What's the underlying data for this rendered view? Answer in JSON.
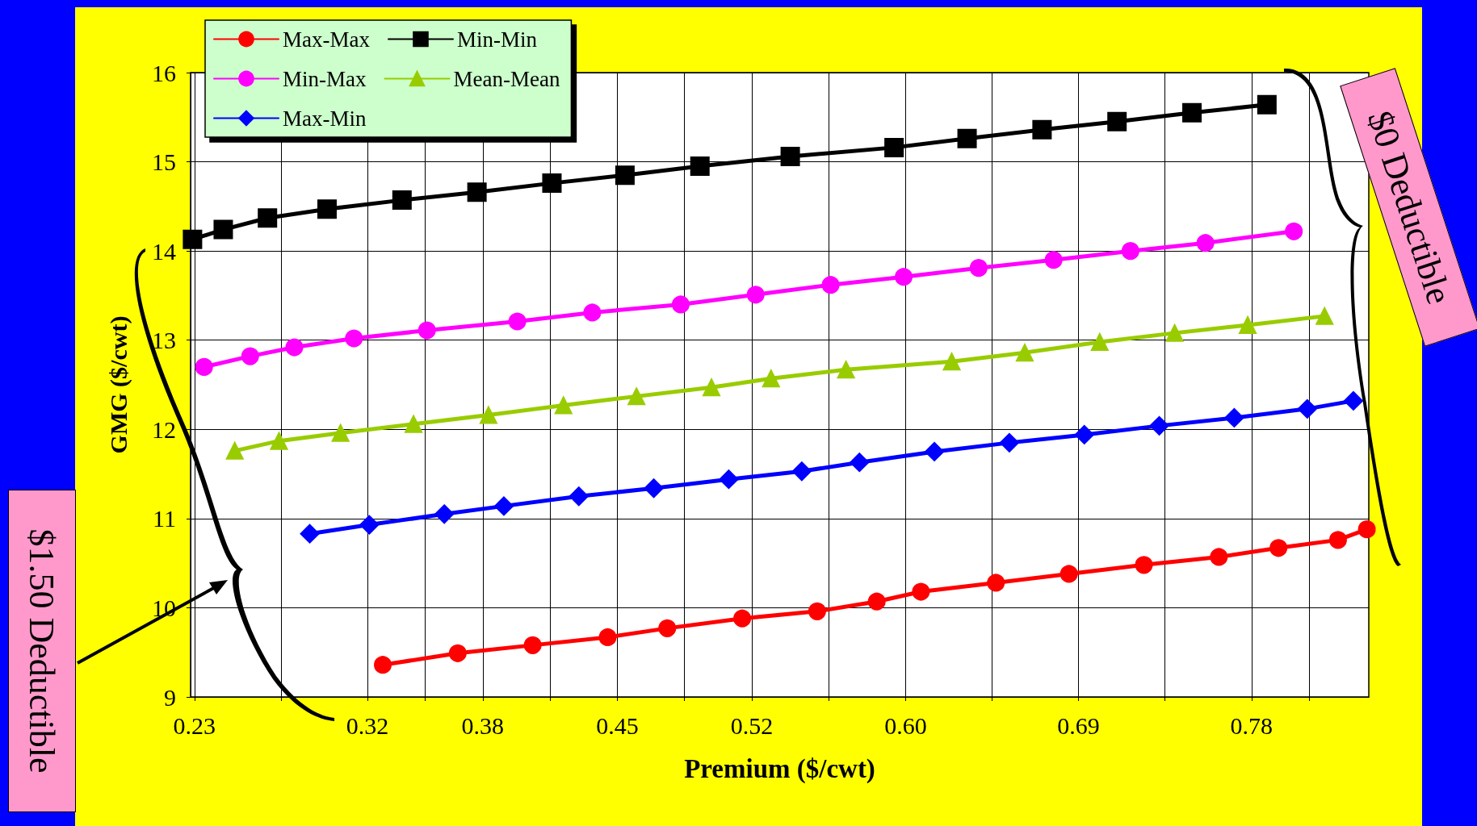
{
  "chart_data": {
    "type": "line",
    "xlabel": "Premium ($/cwt)",
    "ylabel": "GMG ($/cwt)",
    "xlim": [
      0.228,
      0.841
    ],
    "xticks": [
      0.23,
      {
        "value": 0.275,
        "label": null
      },
      0.32,
      {
        "value": 0.35,
        "label": null
      },
      0.38,
      {
        "value": 0.415,
        "label": null
      },
      0.45,
      {
        "value": 0.485,
        "label": null
      },
      0.52,
      {
        "value": 0.56,
        "label": null
      },
      {
        "value": 0.6,
        "label": "0.60"
      },
      {
        "value": 0.645,
        "label": null
      },
      0.69,
      {
        "value": 0.735,
        "label": null
      },
      0.78,
      {
        "value": 0.81,
        "label": null
      }
    ],
    "ylim": [
      9,
      16
    ],
    "yticks": [
      9,
      10,
      11,
      12,
      13,
      14,
      15,
      16
    ],
    "grid": true,
    "legend": "top left",
    "line_style": "solid",
    "annotations": [
      "$0 Deductible",
      "$1.50 Deductible"
    ],
    "series": [
      {
        "name": "Max-Max",
        "color": "#ff0000",
        "marker": "circle",
        "x": [
          0.328,
          0.367,
          0.406,
          0.445,
          0.476,
          0.515,
          0.554,
          0.585,
          0.608,
          0.647,
          0.685,
          0.724,
          0.763,
          0.794,
          0.825,
          0.84
        ],
        "values": [
          9.36,
          9.49,
          9.58,
          9.67,
          9.77,
          9.88,
          9.96,
          10.07,
          10.18,
          10.28,
          10.38,
          10.48,
          10.57,
          10.67,
          10.76,
          10.88
        ]
      },
      {
        "name": "Min-Min",
        "color": "#000000",
        "marker": "square",
        "x": [
          0.229,
          0.245,
          0.268,
          0.299,
          0.338,
          0.377,
          0.416,
          0.454,
          0.493,
          0.54,
          0.594,
          0.632,
          0.671,
          0.71,
          0.749,
          0.788
        ],
        "values": [
          14.13,
          14.24,
          14.37,
          14.47,
          14.57,
          14.66,
          14.76,
          14.85,
          14.95,
          15.06,
          15.16,
          15.26,
          15.36,
          15.45,
          15.55,
          15.64
        ]
      },
      {
        "name": "Min-Max",
        "color": "#ff00ff",
        "marker": "circle",
        "x": [
          0.235,
          0.259,
          0.282,
          0.313,
          0.351,
          0.398,
          0.437,
          0.483,
          0.522,
          0.561,
          0.599,
          0.638,
          0.677,
          0.717,
          0.756,
          0.802
        ],
        "values": [
          12.7,
          12.82,
          12.92,
          13.02,
          13.11,
          13.21,
          13.31,
          13.4,
          13.51,
          13.62,
          13.71,
          13.81,
          13.9,
          14.0,
          14.09,
          14.22
        ]
      },
      {
        "name": "Mean-Mean",
        "color": "#99cc00",
        "marker": "triangle",
        "x": [
          0.251,
          0.274,
          0.306,
          0.344,
          0.383,
          0.422,
          0.46,
          0.499,
          0.53,
          0.569,
          0.624,
          0.662,
          0.701,
          0.74,
          0.778,
          0.818
        ],
        "values": [
          11.76,
          11.87,
          11.96,
          12.06,
          12.16,
          12.27,
          12.37,
          12.47,
          12.57,
          12.67,
          12.76,
          12.86,
          12.98,
          13.08,
          13.17,
          13.27
        ]
      },
      {
        "name": "Max-Min",
        "color": "#0000ff",
        "marker": "diamond",
        "x": [
          0.29,
          0.321,
          0.36,
          0.391,
          0.43,
          0.469,
          0.508,
          0.546,
          0.576,
          0.615,
          0.654,
          0.693,
          0.732,
          0.771,
          0.809,
          0.833
        ],
        "values": [
          10.83,
          10.93,
          11.05,
          11.14,
          11.25,
          11.34,
          11.44,
          11.53,
          11.63,
          11.75,
          11.85,
          11.94,
          12.04,
          12.13,
          12.23,
          12.32
        ]
      }
    ]
  }
}
